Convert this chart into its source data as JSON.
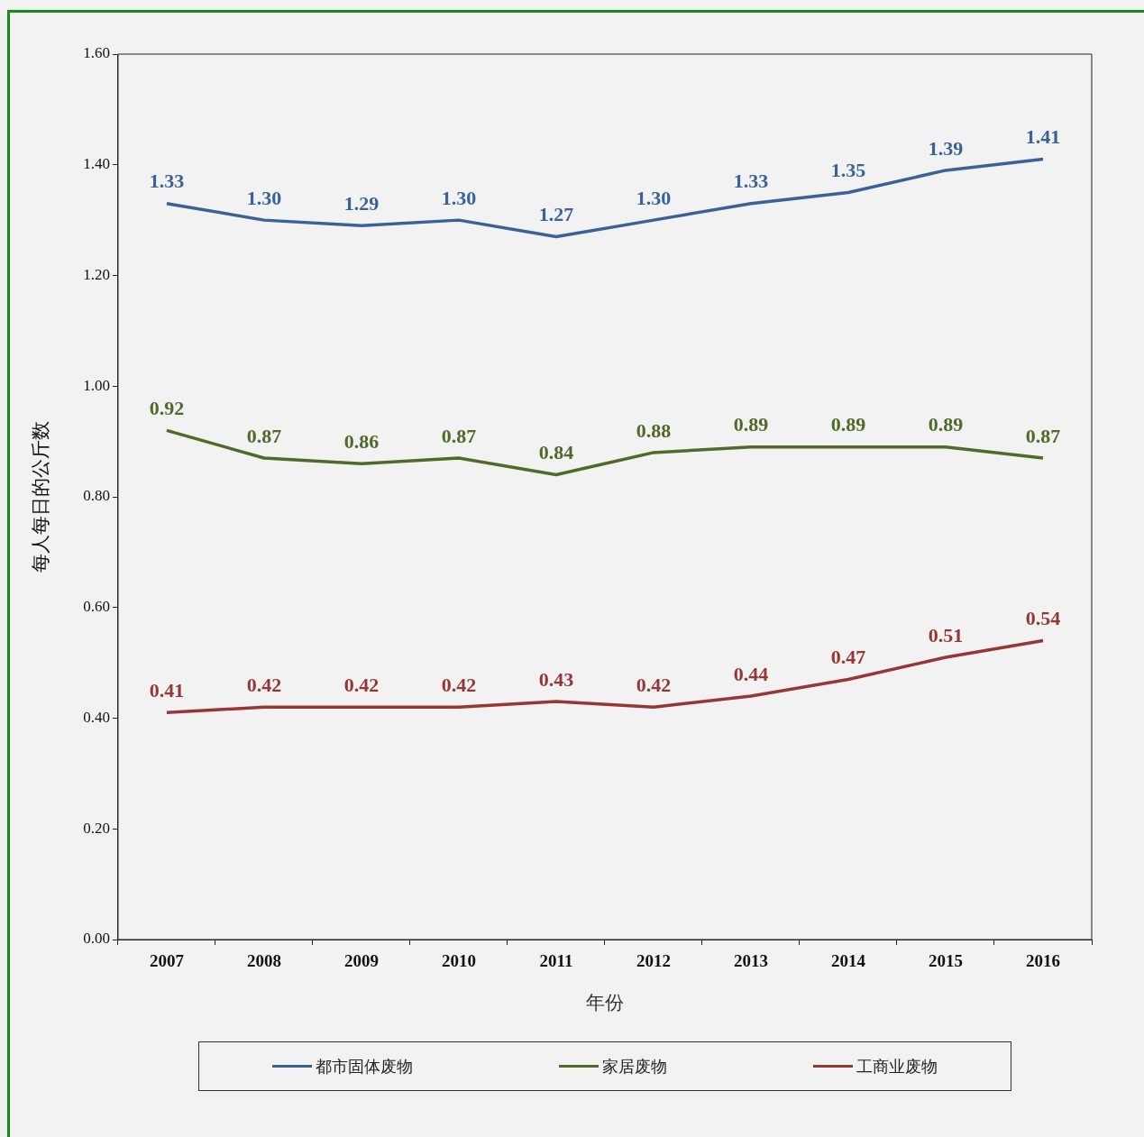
{
  "chart_data": {
    "type": "line",
    "xlabel": "年份",
    "ylabel": "每人每日的公斤数",
    "categories": [
      "2007",
      "2008",
      "2009",
      "2010",
      "2011",
      "2012",
      "2013",
      "2014",
      "2015",
      "2016"
    ],
    "series": [
      {
        "name": "都市固体废物",
        "color": "#3a6299",
        "values": [
          1.33,
          1.3,
          1.29,
          1.3,
          1.27,
          1.3,
          1.33,
          1.35,
          1.39,
          1.41
        ],
        "value_labels": [
          "1.33",
          "1.30",
          "1.29",
          "1.30",
          "1.27",
          "1.30",
          "1.33",
          "1.35",
          "1.39",
          "1.41"
        ]
      },
      {
        "name": "家居废物",
        "color": "#4f6b2a",
        "values": [
          0.92,
          0.87,
          0.86,
          0.87,
          0.84,
          0.88,
          0.89,
          0.89,
          0.89,
          0.87
        ],
        "value_labels": [
          "0.92",
          "0.87",
          "0.86",
          "0.87",
          "0.84",
          "0.88",
          "0.89",
          "0.89",
          "0.89",
          "0.87"
        ]
      },
      {
        "name": "工商业废物",
        "color": "#953735",
        "values": [
          0.41,
          0.42,
          0.42,
          0.42,
          0.43,
          0.42,
          0.44,
          0.47,
          0.51,
          0.54
        ],
        "value_labels": [
          "0.41",
          "0.42",
          "0.42",
          "0.42",
          "0.43",
          "0.42",
          "0.44",
          "0.47",
          "0.51",
          "0.54"
        ]
      }
    ],
    "ylim": [
      0,
      1.6
    ],
    "yticks": [
      {
        "value": 0,
        "label": "0.00"
      },
      {
        "value": 0.2,
        "label": "0.20"
      },
      {
        "value": 0.4,
        "label": "0.40"
      },
      {
        "value": 0.6,
        "label": "0.60"
      },
      {
        "value": 0.8,
        "label": "0.80"
      },
      {
        "value": 1.0,
        "label": "1.00"
      },
      {
        "value": 1.2,
        "label": "1.20"
      },
      {
        "value": 1.4,
        "label": "1.40"
      },
      {
        "value": 1.6,
        "label": "1.60"
      }
    ],
    "grid": false,
    "legend": "bottom",
    "marker": "none",
    "line_style": "solid"
  }
}
